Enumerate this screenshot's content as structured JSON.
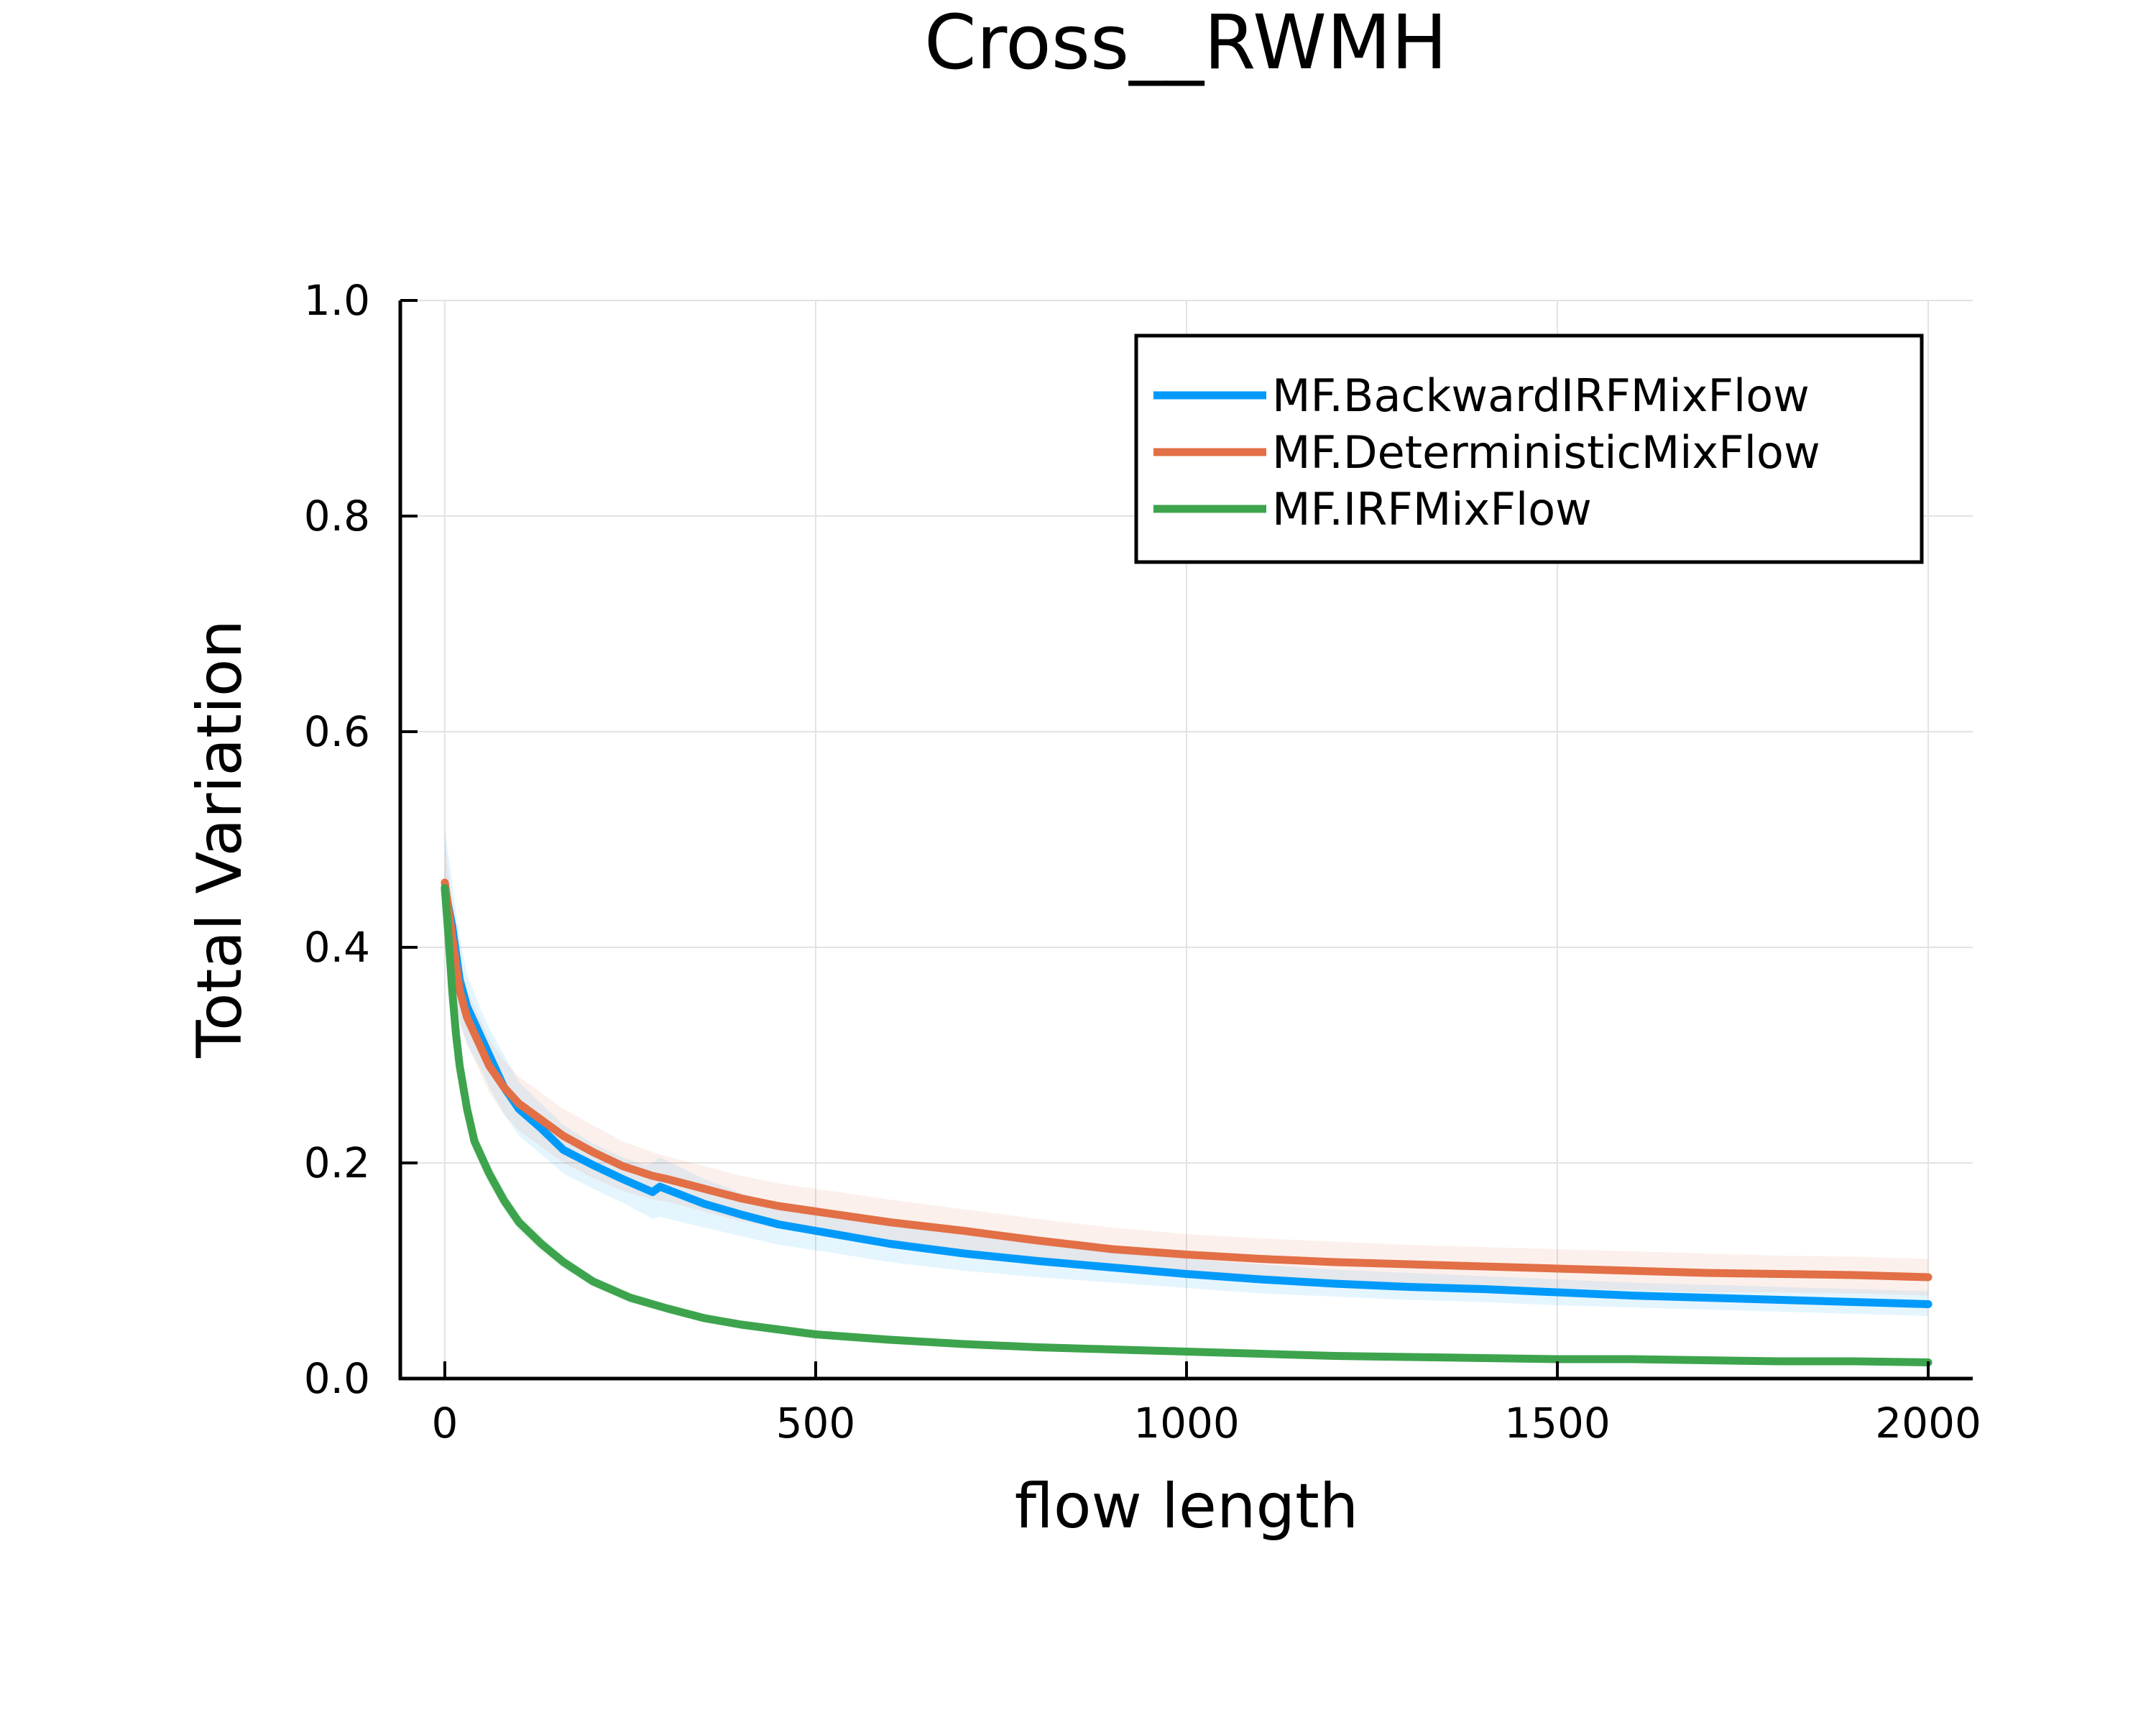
{
  "chart_data": {
    "type": "line",
    "title": "Cross__RWMH",
    "xlabel": "flow length",
    "ylabel": "Total Variation",
    "xlim": [
      -60,
      2060
    ],
    "ylim": [
      0,
      1.0
    ],
    "xticks": [
      0,
      500,
      1000,
      1500,
      2000
    ],
    "xtick_labels": [
      "0",
      "500",
      "1000",
      "1500",
      "2000"
    ],
    "yticks": [
      0,
      0.2,
      0.4,
      0.6,
      0.8,
      1.0
    ],
    "ytick_labels": [
      "0.0",
      "0.2",
      "0.4",
      "0.6",
      "0.8",
      "1.0"
    ],
    "grid": true,
    "legend_position": "top-right",
    "series": [
      {
        "name": "MF.BackwardIRFMixFlow",
        "color": "#009AFA",
        "x": [
          0,
          10,
          20,
          30,
          50,
          60,
          80,
          100,
          130,
          160,
          200,
          240,
          270,
          280,
          290,
          320,
          350,
          400,
          450,
          500,
          600,
          700,
          800,
          900,
          1000,
          1100,
          1200,
          1300,
          1400,
          1500,
          1600,
          1700,
          1800,
          1900,
          2000
        ],
        "y": [
          0.455,
          0.42,
          0.37,
          0.345,
          0.315,
          0.3,
          0.27,
          0.25,
          0.232,
          0.212,
          0.198,
          0.185,
          0.176,
          0.173,
          0.178,
          0.17,
          0.162,
          0.152,
          0.143,
          0.137,
          0.125,
          0.116,
          0.109,
          0.103,
          0.097,
          0.092,
          0.088,
          0.085,
          0.083,
          0.08,
          0.077,
          0.075,
          0.073,
          0.071,
          0.069
        ],
        "band_upper": [
          0.51,
          0.46,
          0.41,
          0.375,
          0.34,
          0.325,
          0.3,
          0.275,
          0.255,
          0.235,
          0.218,
          0.205,
          0.198,
          0.2,
          0.205,
          0.195,
          0.185,
          0.172,
          0.162,
          0.155,
          0.143,
          0.133,
          0.125,
          0.118,
          0.111,
          0.106,
          0.101,
          0.098,
          0.095,
          0.092,
          0.089,
          0.087,
          0.085,
          0.083,
          0.081
        ],
        "band_lower": [
          0.4,
          0.38,
          0.33,
          0.31,
          0.285,
          0.27,
          0.245,
          0.225,
          0.208,
          0.19,
          0.176,
          0.163,
          0.152,
          0.148,
          0.15,
          0.145,
          0.14,
          0.132,
          0.124,
          0.119,
          0.108,
          0.1,
          0.094,
          0.089,
          0.084,
          0.079,
          0.076,
          0.073,
          0.071,
          0.068,
          0.066,
          0.064,
          0.062,
          0.06,
          0.058
        ]
      },
      {
        "name": "MF.DeterministicMixFlow",
        "color": "#E26F46",
        "x": [
          0,
          10,
          20,
          30,
          50,
          60,
          80,
          100,
          130,
          160,
          200,
          240,
          280,
          300,
          350,
          400,
          450,
          500,
          600,
          700,
          800,
          900,
          1000,
          1100,
          1200,
          1300,
          1400,
          1500,
          1600,
          1700,
          1800,
          1900,
          2000
        ],
        "y": [
          0.46,
          0.41,
          0.36,
          0.335,
          0.305,
          0.29,
          0.27,
          0.255,
          0.24,
          0.225,
          0.21,
          0.197,
          0.188,
          0.185,
          0.176,
          0.167,
          0.16,
          0.155,
          0.145,
          0.137,
          0.128,
          0.12,
          0.115,
          0.111,
          0.108,
          0.106,
          0.104,
          0.102,
          0.1,
          0.098,
          0.097,
          0.096,
          0.094
        ],
        "band_upper": [
          0.5,
          0.44,
          0.39,
          0.36,
          0.33,
          0.315,
          0.295,
          0.28,
          0.265,
          0.25,
          0.235,
          0.22,
          0.21,
          0.206,
          0.197,
          0.188,
          0.181,
          0.176,
          0.166,
          0.157,
          0.148,
          0.14,
          0.134,
          0.13,
          0.127,
          0.124,
          0.122,
          0.12,
          0.118,
          0.116,
          0.114,
          0.113,
          0.111
        ],
        "band_lower": [
          0.42,
          0.38,
          0.33,
          0.31,
          0.28,
          0.265,
          0.245,
          0.23,
          0.215,
          0.2,
          0.186,
          0.174,
          0.166,
          0.164,
          0.155,
          0.146,
          0.139,
          0.134,
          0.124,
          0.117,
          0.108,
          0.1,
          0.096,
          0.092,
          0.089,
          0.088,
          0.086,
          0.084,
          0.082,
          0.08,
          0.08,
          0.079,
          0.077
        ]
      },
      {
        "name": "MF.IRFMixFlow",
        "color": "#3DA44D",
        "x": [
          0,
          5,
          10,
          15,
          20,
          30,
          40,
          60,
          80,
          100,
          130,
          160,
          200,
          250,
          300,
          350,
          400,
          500,
          600,
          700,
          800,
          900,
          1000,
          1100,
          1200,
          1300,
          1400,
          1500,
          1600,
          1700,
          1800,
          1900,
          2000
        ],
        "y": [
          0.455,
          0.41,
          0.36,
          0.32,
          0.29,
          0.25,
          0.22,
          0.19,
          0.165,
          0.145,
          0.125,
          0.108,
          0.09,
          0.075,
          0.065,
          0.056,
          0.05,
          0.041,
          0.036,
          0.032,
          0.029,
          0.027,
          0.025,
          0.023,
          0.021,
          0.02,
          0.019,
          0.018,
          0.018,
          0.017,
          0.016,
          0.016,
          0.015
        ],
        "band_upper": [
          0.47,
          0.425,
          0.375,
          0.334,
          0.303,
          0.262,
          0.231,
          0.2,
          0.174,
          0.153,
          0.132,
          0.114,
          0.095,
          0.08,
          0.069,
          0.06,
          0.054,
          0.045,
          0.04,
          0.035,
          0.032,
          0.03,
          0.028,
          0.026,
          0.024,
          0.023,
          0.022,
          0.021,
          0.021,
          0.02,
          0.019,
          0.019,
          0.018
        ],
        "band_lower": [
          0.44,
          0.395,
          0.345,
          0.306,
          0.277,
          0.238,
          0.209,
          0.18,
          0.156,
          0.137,
          0.118,
          0.102,
          0.085,
          0.07,
          0.061,
          0.052,
          0.046,
          0.037,
          0.032,
          0.029,
          0.026,
          0.024,
          0.022,
          0.02,
          0.018,
          0.017,
          0.016,
          0.015,
          0.015,
          0.014,
          0.013,
          0.013,
          0.012
        ]
      }
    ]
  }
}
